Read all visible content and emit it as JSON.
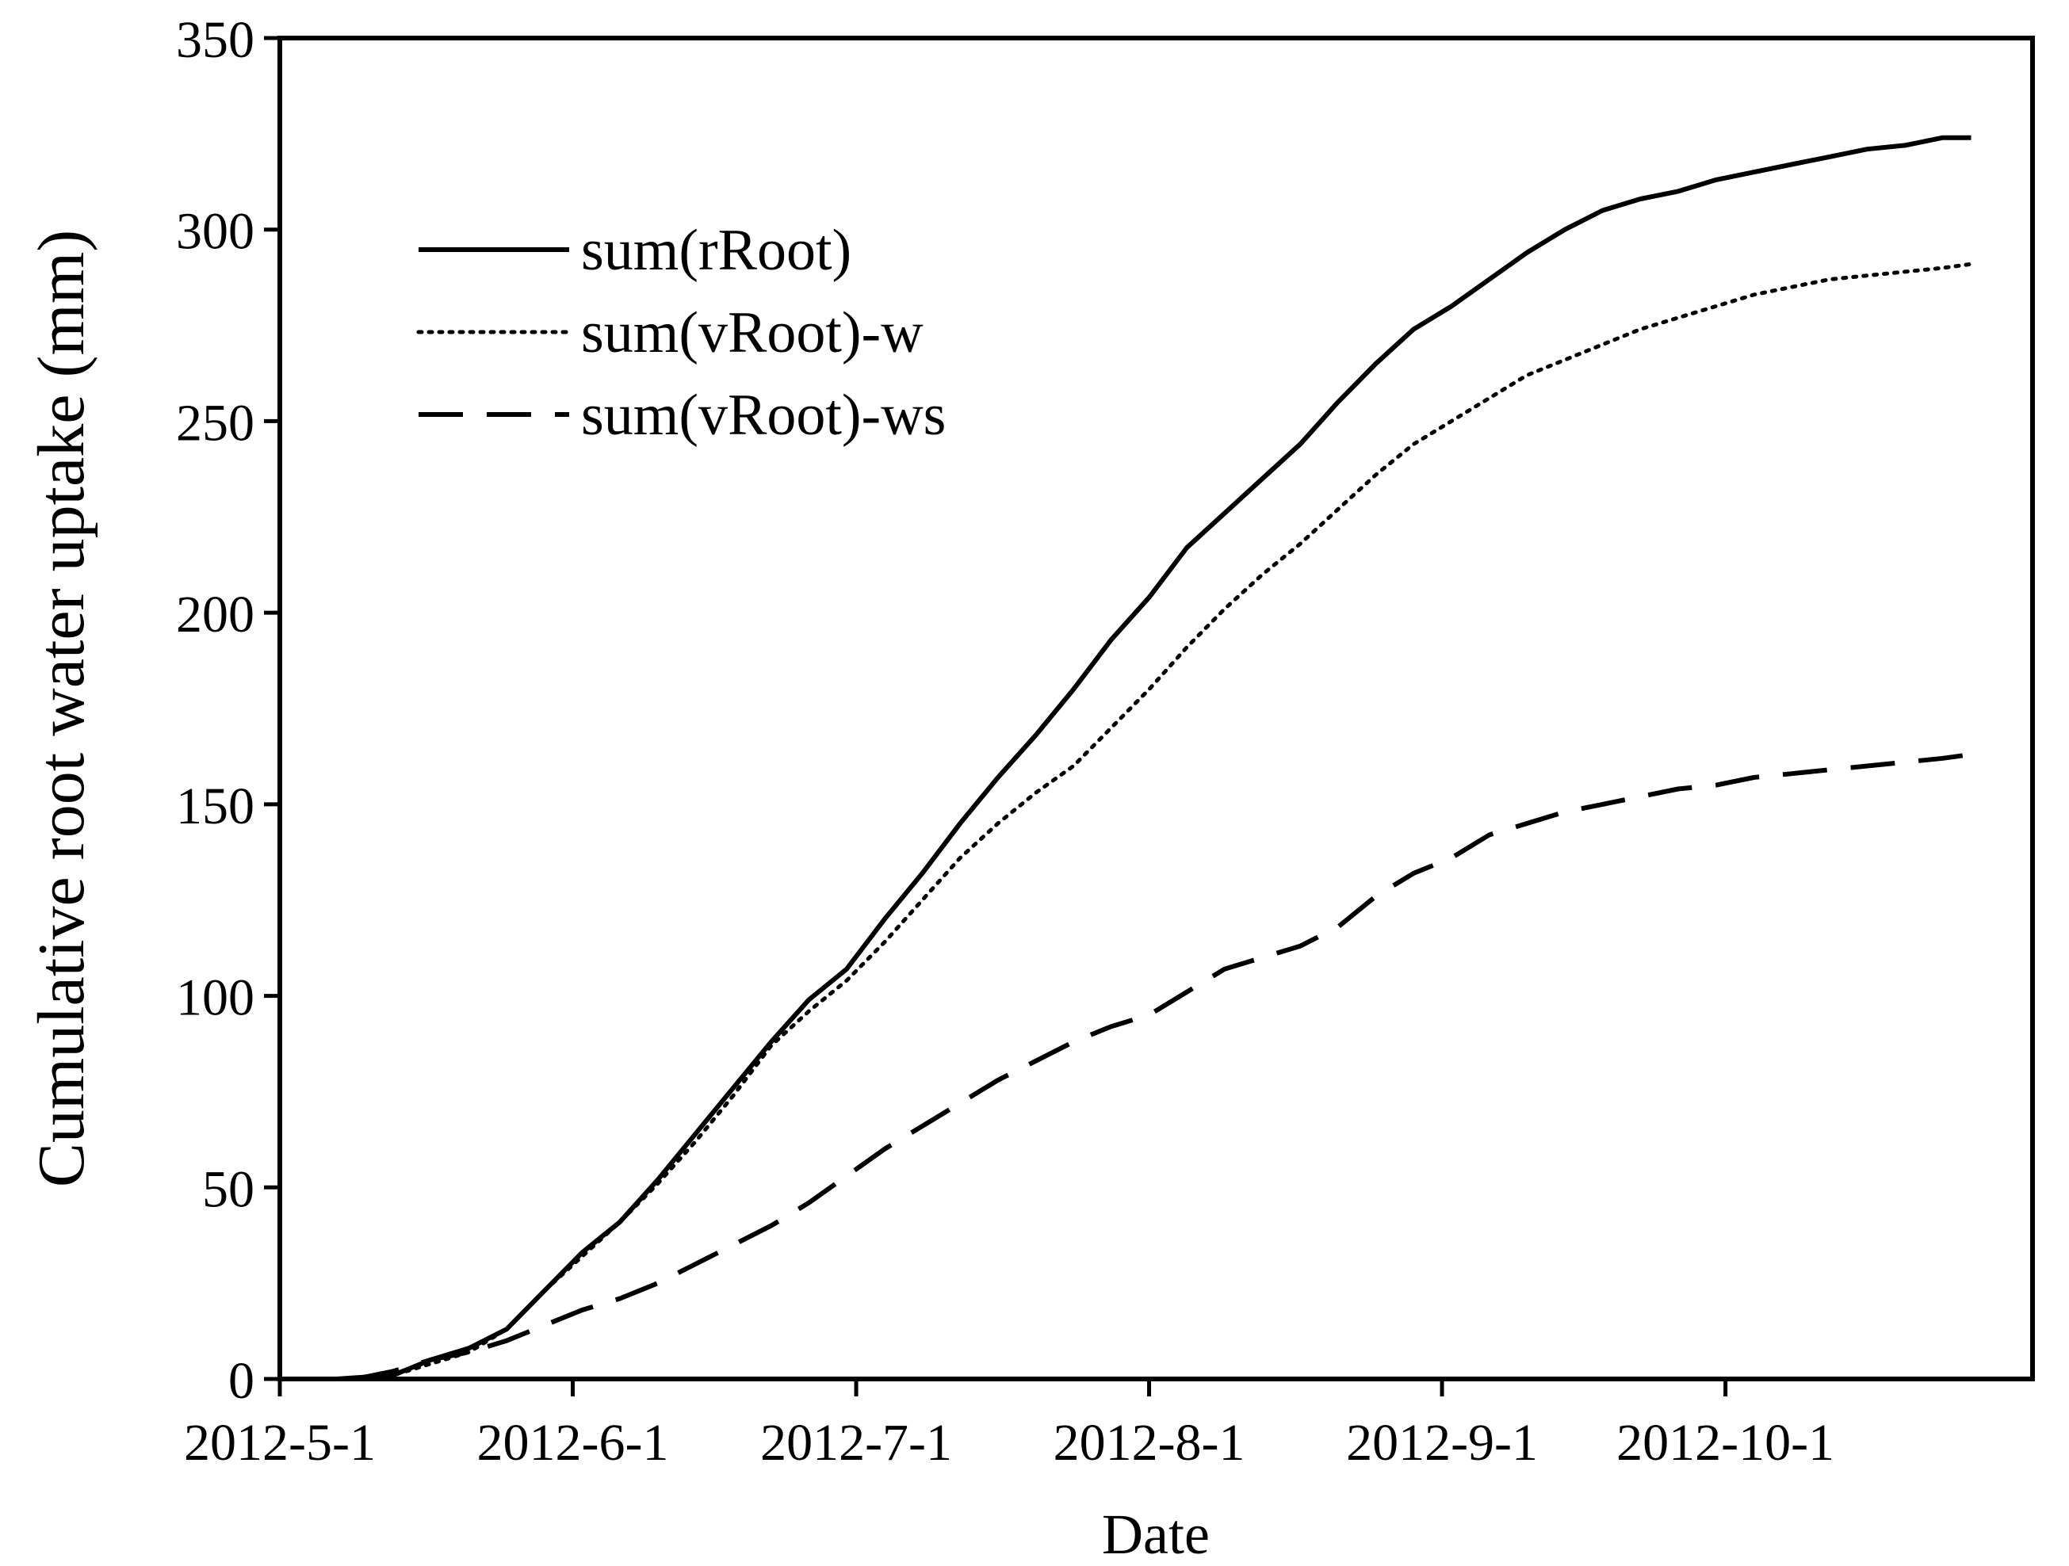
{
  "chart_data": {
    "type": "line",
    "xlabel": "Date",
    "ylabel": "Cumulative root water uptake (mm)",
    "xlim": [
      "2012-5-1",
      "2012-10-28"
    ],
    "ylim": [
      0,
      350
    ],
    "yticks": [
      0,
      50,
      100,
      150,
      200,
      250,
      300,
      350
    ],
    "xticks": [
      "2012-5-1",
      "2012-6-1",
      "2012-7-1",
      "2012-8-1",
      "2012-9-1",
      "2012-10-1"
    ],
    "grid": false,
    "legend_position": "upper-left",
    "series": [
      {
        "name": "sum(rRoot)",
        "style": "solid",
        "color": "#000000",
        "points": [
          [
            "2012-5-7",
            0
          ],
          [
            "2012-5-13",
            1
          ],
          [
            "2012-5-17",
            5
          ],
          [
            "2012-5-21",
            8
          ],
          [
            "2012-5-25",
            13
          ],
          [
            "2012-5-29",
            23
          ],
          [
            "2012-6-2",
            33
          ],
          [
            "2012-6-6",
            41
          ],
          [
            "2012-6-10",
            52
          ],
          [
            "2012-6-14",
            64
          ],
          [
            "2012-6-18",
            76
          ],
          [
            "2012-6-22",
            88
          ],
          [
            "2012-6-26",
            99
          ],
          [
            "2012-6-30",
            107
          ],
          [
            "2012-7-4",
            120
          ],
          [
            "2012-7-8",
            132
          ],
          [
            "2012-7-12",
            145
          ],
          [
            "2012-7-16",
            157
          ],
          [
            "2012-7-20",
            168
          ],
          [
            "2012-7-24",
            180
          ],
          [
            "2012-7-28",
            193
          ],
          [
            "2012-8-1",
            204
          ],
          [
            "2012-8-5",
            217
          ],
          [
            "2012-8-9",
            226
          ],
          [
            "2012-8-13",
            235
          ],
          [
            "2012-8-17",
            244
          ],
          [
            "2012-8-21",
            255
          ],
          [
            "2012-8-25",
            265
          ],
          [
            "2012-8-29",
            274
          ],
          [
            "2012-9-2",
            280
          ],
          [
            "2012-9-6",
            287
          ],
          [
            "2012-9-10",
            294
          ],
          [
            "2012-9-14",
            300
          ],
          [
            "2012-9-18",
            305
          ],
          [
            "2012-9-22",
            308
          ],
          [
            "2012-9-26",
            310
          ],
          [
            "2012-9-30",
            313
          ],
          [
            "2012-10-4",
            315
          ],
          [
            "2012-10-8",
            317
          ],
          [
            "2012-10-12",
            319
          ],
          [
            "2012-10-16",
            321
          ],
          [
            "2012-10-20",
            322
          ],
          [
            "2012-10-24",
            324
          ],
          [
            "2012-10-27",
            324
          ]
        ]
      },
      {
        "name": "sum(vRoot)-w",
        "style": "dotted",
        "color": "#000000",
        "points": [
          [
            "2012-5-9",
            0
          ],
          [
            "2012-5-13",
            1
          ],
          [
            "2012-5-17",
            4
          ],
          [
            "2012-5-21",
            7
          ],
          [
            "2012-5-25",
            13
          ],
          [
            "2012-5-29",
            23
          ],
          [
            "2012-6-2",
            32
          ],
          [
            "2012-6-6",
            41
          ],
          [
            "2012-6-10",
            51
          ],
          [
            "2012-6-14",
            62
          ],
          [
            "2012-6-18",
            74
          ],
          [
            "2012-6-22",
            87
          ],
          [
            "2012-6-26",
            96
          ],
          [
            "2012-6-30",
            104
          ],
          [
            "2012-7-4",
            114
          ],
          [
            "2012-7-8",
            125
          ],
          [
            "2012-7-12",
            136
          ],
          [
            "2012-7-16",
            145
          ],
          [
            "2012-7-20",
            153
          ],
          [
            "2012-7-24",
            160
          ],
          [
            "2012-7-28",
            170
          ],
          [
            "2012-8-1",
            180
          ],
          [
            "2012-8-5",
            191
          ],
          [
            "2012-8-9",
            201
          ],
          [
            "2012-8-13",
            210
          ],
          [
            "2012-8-17",
            218
          ],
          [
            "2012-8-21",
            227
          ],
          [
            "2012-8-25",
            236
          ],
          [
            "2012-8-29",
            244
          ],
          [
            "2012-9-2",
            250
          ],
          [
            "2012-9-6",
            256
          ],
          [
            "2012-9-10",
            262
          ],
          [
            "2012-9-14",
            266
          ],
          [
            "2012-9-18",
            270
          ],
          [
            "2012-9-22",
            274
          ],
          [
            "2012-9-26",
            277
          ],
          [
            "2012-9-30",
            280
          ],
          [
            "2012-10-4",
            283
          ],
          [
            "2012-10-8",
            285
          ],
          [
            "2012-10-12",
            287
          ],
          [
            "2012-10-16",
            288
          ],
          [
            "2012-10-20",
            289
          ],
          [
            "2012-10-24",
            290
          ],
          [
            "2012-10-27",
            291
          ]
        ]
      },
      {
        "name": "sum(vRoot)-ws",
        "style": "dashed",
        "color": "#000000",
        "points": [
          [
            "2012-5-9",
            0
          ],
          [
            "2012-5-13",
            2
          ],
          [
            "2012-5-17",
            5
          ],
          [
            "2012-5-21",
            7
          ],
          [
            "2012-5-25",
            10
          ],
          [
            "2012-5-29",
            14
          ],
          [
            "2012-6-2",
            18
          ],
          [
            "2012-6-6",
            21
          ],
          [
            "2012-6-10",
            25
          ],
          [
            "2012-6-14",
            30
          ],
          [
            "2012-6-18",
            35
          ],
          [
            "2012-6-22",
            40
          ],
          [
            "2012-6-26",
            46
          ],
          [
            "2012-6-30",
            53
          ],
          [
            "2012-7-4",
            60
          ],
          [
            "2012-7-8",
            66
          ],
          [
            "2012-7-12",
            72
          ],
          [
            "2012-7-16",
            78
          ],
          [
            "2012-7-20",
            83
          ],
          [
            "2012-7-24",
            88
          ],
          [
            "2012-7-28",
            92
          ],
          [
            "2012-8-1",
            95
          ],
          [
            "2012-8-5",
            101
          ],
          [
            "2012-8-9",
            107
          ],
          [
            "2012-8-13",
            110
          ],
          [
            "2012-8-17",
            113
          ],
          [
            "2012-8-21",
            118
          ],
          [
            "2012-8-25",
            126
          ],
          [
            "2012-8-29",
            132
          ],
          [
            "2012-9-2",
            136
          ],
          [
            "2012-9-6",
            142
          ],
          [
            "2012-9-10",
            145
          ],
          [
            "2012-9-14",
            148
          ],
          [
            "2012-9-18",
            150
          ],
          [
            "2012-9-22",
            152
          ],
          [
            "2012-9-26",
            154
          ],
          [
            "2012-9-30",
            155
          ],
          [
            "2012-10-4",
            157
          ],
          [
            "2012-10-8",
            158
          ],
          [
            "2012-10-12",
            159
          ],
          [
            "2012-10-16",
            160
          ],
          [
            "2012-10-20",
            161
          ],
          [
            "2012-10-24",
            162
          ],
          [
            "2012-10-27",
            163
          ]
        ]
      }
    ]
  }
}
